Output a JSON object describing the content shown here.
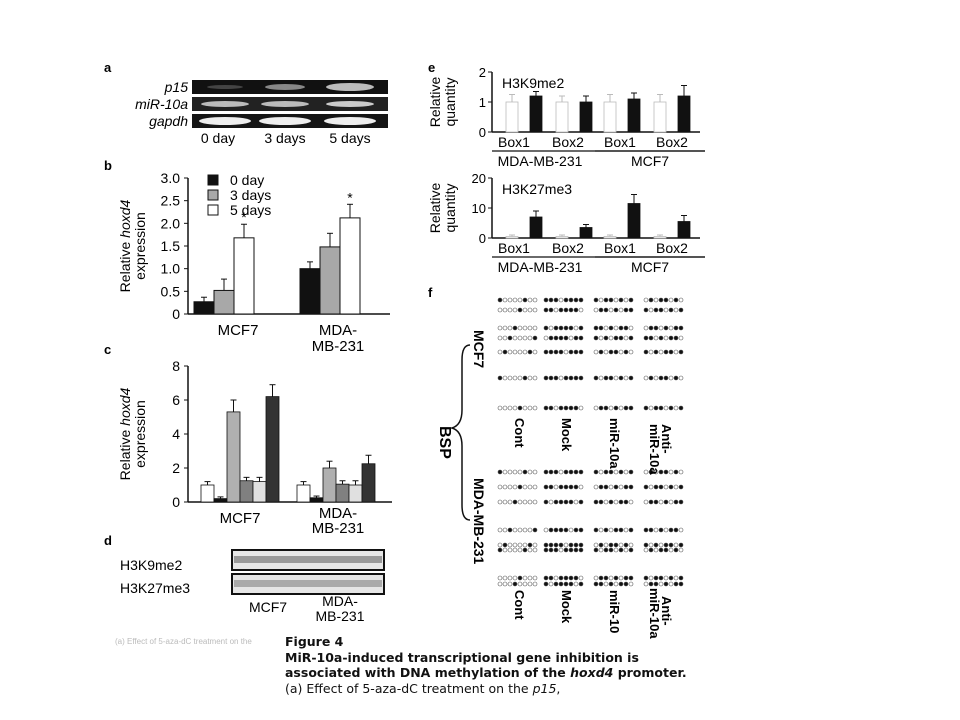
{
  "panel_letters": {
    "a": "a",
    "b": "b",
    "c": "c",
    "d": "d",
    "e": "e",
    "f": "f"
  },
  "panel_a": {
    "genes": [
      "p15",
      "miR-10a",
      "gapdh"
    ],
    "timepoints": [
      "0 day",
      "3 days",
      "5 days"
    ]
  },
  "chart_data": [
    {
      "panel": "b",
      "type": "bar",
      "ylabel": "Relative hoxd4 expression",
      "categories": [
        "MCF7",
        "MDA-MB-231"
      ],
      "yticks": [
        "0",
        "0.5",
        "1.0",
        "1.5",
        "2.0",
        "2.5",
        "3.0"
      ],
      "ylim": [
        0,
        3.0
      ],
      "legend_position": "top-left",
      "significance_mark": "*",
      "series": [
        {
          "name": "0 day",
          "color": "#111111",
          "values": [
            0.27,
            1.0
          ],
          "errors": [
            0.1,
            0.15
          ]
        },
        {
          "name": "3 days",
          "color": "#a8a8a8",
          "values": [
            0.52,
            1.48
          ],
          "errors": [
            0.25,
            0.3
          ]
        },
        {
          "name": "5 days",
          "color": "#ffffff",
          "values": [
            1.68,
            2.12
          ],
          "errors": [
            0.3,
            0.3
          ]
        }
      ]
    },
    {
      "panel": "c",
      "type": "bar",
      "ylabel": "Relative hoxd4 expression",
      "categories": [
        "MCF7",
        "MDA-MB-231"
      ],
      "yticks": [
        "0",
        "2",
        "4",
        "6",
        "8"
      ],
      "ylim": [
        0,
        8
      ],
      "bar_colors": [
        "#ffffff",
        "#111111",
        "#b0b0b0",
        "#808080",
        "#e0e0e0",
        "#333333"
      ],
      "groups": [
        {
          "values": [
            1.0,
            0.2,
            5.3,
            1.25,
            1.2,
            6.2
          ],
          "errors": [
            0.2,
            0.1,
            0.7,
            0.2,
            0.25,
            0.7
          ]
        },
        {
          "values": [
            1.0,
            0.25,
            2.0,
            1.05,
            1.0,
            2.25
          ],
          "errors": [
            0.2,
            0.1,
            0.4,
            0.2,
            0.25,
            0.5
          ]
        }
      ]
    },
    {
      "panel": "e-upper",
      "type": "bar",
      "title": "H3K9me2",
      "ylabel": "Relative quantity",
      "yticks": [
        "0",
        "1",
        "2"
      ],
      "ylim": [
        0,
        2
      ],
      "categories": [
        "Box1",
        "Box2",
        "Box1",
        "Box2"
      ],
      "group_labels": [
        "MDA-MB-231",
        "MCF7"
      ],
      "series": [
        {
          "color": "#ffffff",
          "values": [
            1.0,
            1.0,
            1.0,
            1.0
          ],
          "errors": [
            0.25,
            0.2,
            0.25,
            0.25
          ]
        },
        {
          "color": "#111111",
          "values": [
            1.2,
            1.0,
            1.1,
            1.2
          ],
          "errors": [
            0.15,
            0.2,
            0.2,
            0.35
          ]
        }
      ]
    },
    {
      "panel": "e-lower",
      "type": "bar",
      "title": "H3K27me3",
      "ylabel": "Relative quantity",
      "yticks": [
        "0",
        "10",
        "20"
      ],
      "ylim": [
        0,
        20
      ],
      "categories": [
        "Box1",
        "Box2",
        "Box1",
        "Box2"
      ],
      "group_labels": [
        "MDA-MB-231",
        "MCF7"
      ],
      "series": [
        {
          "color": "#ffffff",
          "values": [
            0.5,
            0.5,
            0.5,
            0.5
          ],
          "errors": [
            0.5,
            0.5,
            0.5,
            0.5
          ]
        },
        {
          "color": "#111111",
          "values": [
            7,
            3.5,
            11.5,
            5.5
          ],
          "errors": [
            2,
            1,
            3,
            2
          ]
        }
      ]
    }
  ],
  "panel_d": {
    "rows": [
      "H3K9me2",
      "H3K27me3"
    ],
    "columns": [
      "MCF7",
      "MDA-MB-231"
    ]
  },
  "panel_f": {
    "method": "BSP",
    "cell_lines": [
      "MCF7",
      "MDA-MB-231"
    ],
    "conditions_top": [
      "Cont",
      "Mock",
      "miR-10a",
      "Anti-miR-10a"
    ],
    "conditions_bottom": [
      "Cont",
      "Mock",
      "miR-10",
      "Anti-miR-10a"
    ]
  },
  "caption": {
    "figure": "Figure 4",
    "title": "MiR-10a-induced transcriptional gene inhibition is associated with DNA methylation of the hoxd4 promoter.",
    "text": "(a) Effect of 5-aza-dC treatment on the p15,"
  }
}
